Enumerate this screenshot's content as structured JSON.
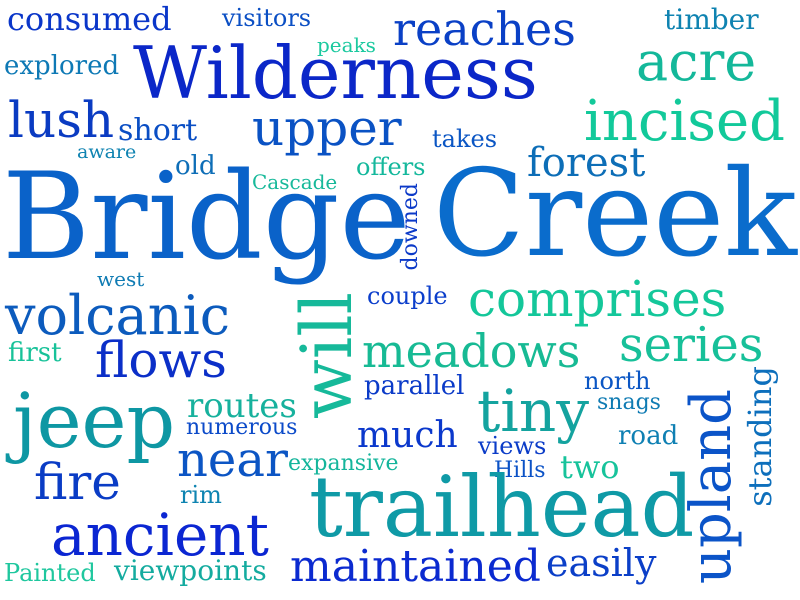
{
  "words": {
    "bridge": {
      "text": "Bridge",
      "color": "#0a62c9"
    },
    "creek": {
      "text": "Creek",
      "color": "#0a6ccc"
    },
    "wilderness": {
      "text": "Wilderness",
      "color": "#0b27c8"
    },
    "trailhead": {
      "text": "trailhead",
      "color": "#0f9aa6"
    },
    "jeep": {
      "text": "jeep",
      "color": "#0e97a3"
    },
    "reaches": {
      "text": "reaches",
      "color": "#0a40c6"
    },
    "incised": {
      "text": "incised",
      "color": "#12c99a"
    },
    "acre": {
      "text": "acre",
      "color": "#14b89a"
    },
    "upper": {
      "text": "upper",
      "color": "#0a52c4"
    },
    "lush": {
      "text": "lush",
      "color": "#0a3bc2"
    },
    "short": {
      "text": "short",
      "color": "#0a4ec4"
    },
    "comprises": {
      "text": "comprises",
      "color": "#14c79a"
    },
    "volcanic": {
      "text": "volcanic",
      "color": "#0c5bbd"
    },
    "meadows": {
      "text": "meadows",
      "color": "#17ba94"
    },
    "series": {
      "text": "series",
      "color": "#17c099"
    },
    "flows": {
      "text": "flows",
      "color": "#0b2fc8"
    },
    "will": {
      "text": "will",
      "color": "#16b99a"
    },
    "tiny": {
      "text": "tiny",
      "color": "#14a39f"
    },
    "upland": {
      "text": "upland",
      "color": "#0b54c8"
    },
    "ancient": {
      "text": "ancient",
      "color": "#0b26d2"
    },
    "maintained": {
      "text": "maintained",
      "color": "#0b2ad0"
    },
    "forest": {
      "text": "forest",
      "color": "#0d6eb7"
    },
    "near": {
      "text": "near",
      "color": "#0c55c4"
    },
    "fire": {
      "text": "fire",
      "color": "#0a3cc5"
    },
    "much": {
      "text": "much",
      "color": "#0b38cc"
    },
    "routes": {
      "text": "routes",
      "color": "#17b19d"
    },
    "easily": {
      "text": "easily",
      "color": "#0b3fc8"
    },
    "standing": {
      "text": "standing",
      "color": "#0d6fbc"
    },
    "consumed": {
      "text": "consumed",
      "color": "#0a36c9"
    },
    "visitors": {
      "text": "visitors",
      "color": "#0b4fc4"
    },
    "timber": {
      "text": "timber",
      "color": "#0f83b1"
    },
    "explored": {
      "text": "explored",
      "color": "#0e79b5"
    },
    "peaks": {
      "text": "peaks",
      "color": "#1bc99f"
    },
    "takes": {
      "text": "takes",
      "color": "#0b56c4"
    },
    "aware": {
      "text": "aware",
      "color": "#0f83b1"
    },
    "old": {
      "text": "old",
      "color": "#0e6eb7"
    },
    "cascade": {
      "text": "Cascade",
      "color": "#17b99a"
    },
    "offers": {
      "text": "offers",
      "color": "#14b89c"
    },
    "downed": {
      "text": "downed",
      "color": "#0b39c8"
    },
    "west": {
      "text": "west",
      "color": "#0f7bb3"
    },
    "couple": {
      "text": "couple",
      "color": "#0b3ecb"
    },
    "first": {
      "text": "first",
      "color": "#18c299"
    },
    "parallel": {
      "text": "parallel",
      "color": "#0b3bc8"
    },
    "north": {
      "text": "north",
      "color": "#0b56c4"
    },
    "snags": {
      "text": "snags",
      "color": "#0f7bb3"
    },
    "numerous": {
      "text": "numerous",
      "color": "#0b4ac9"
    },
    "road": {
      "text": "road",
      "color": "#0f80b3"
    },
    "views": {
      "text": "views",
      "color": "#0b3cc8"
    },
    "expansive": {
      "text": "expansive",
      "color": "#14b59b"
    },
    "hills": {
      "text": "Hills",
      "color": "#0b52c6"
    },
    "two": {
      "text": "two",
      "color": "#17c39b"
    },
    "rim": {
      "text": "rim",
      "color": "#0f84b1"
    },
    "painted": {
      "text": "Painted",
      "color": "#1fc79e"
    },
    "viewpoints": {
      "text": "viewpoints",
      "color": "#14ab9f"
    }
  }
}
